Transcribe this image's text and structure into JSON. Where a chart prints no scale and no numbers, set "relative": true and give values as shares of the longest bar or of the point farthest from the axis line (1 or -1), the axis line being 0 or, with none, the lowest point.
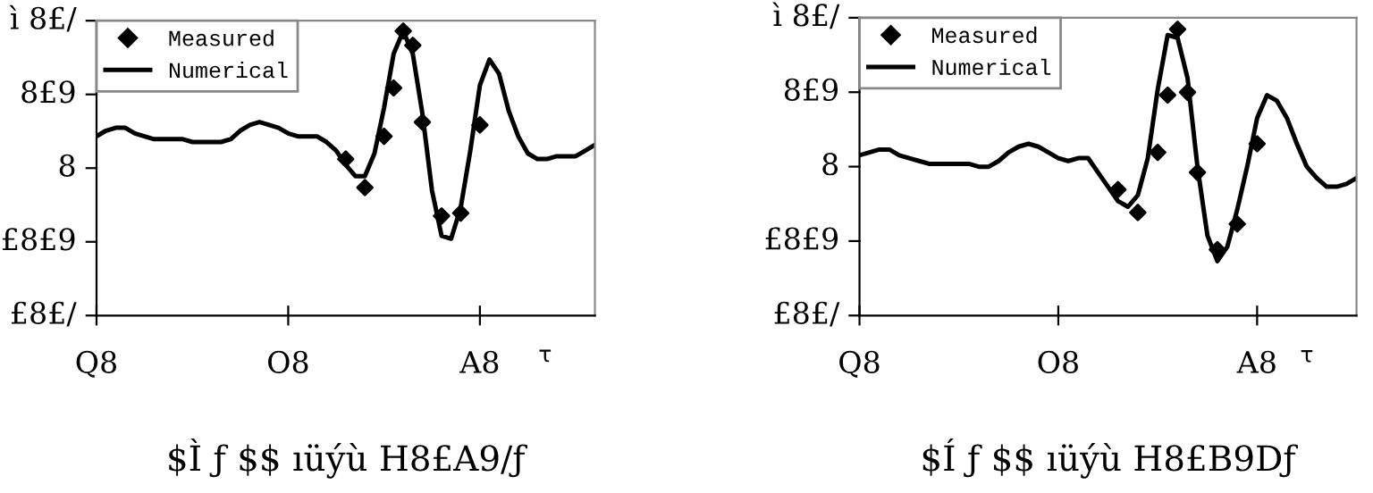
{
  "chart_data": [
    {
      "type": "line",
      "relative": true,
      "legend": "top left",
      "xlabel": "τ",
      "title": "$Ì ƒ $$ ıüýù H8£A9/ƒ",
      "annotations": [
        "ì 8£/",
        "8£9",
        "8",
        "£8£9",
        "£8£/"
      ],
      "categories": [
        "Q8",
        null,
        null,
        null,
        null,
        null,
        null,
        null,
        null,
        null,
        null,
        null,
        null,
        null,
        null,
        null,
        null,
        null,
        null,
        null,
        "O8",
        null,
        null,
        null,
        null,
        null,
        null,
        null,
        null,
        null,
        null,
        null,
        null,
        null,
        null,
        null,
        null,
        null,
        null,
        null,
        "A8",
        null,
        null,
        null,
        null,
        null,
        null,
        null,
        null,
        null,
        null,
        null,
        null
      ],
      "series": [
        {
          "name": "Measured",
          "type": "scatter",
          "marker": "diamond",
          "color": "#000000",
          "values": [
            null,
            null,
            null,
            null,
            null,
            null,
            null,
            null,
            null,
            null,
            null,
            null,
            null,
            null,
            null,
            null,
            null,
            null,
            null,
            null,
            null,
            null,
            null,
            null,
            null,
            null,
            0.55,
            null,
            0.45,
            null,
            0.63,
            0.8,
            1.0,
            0.95,
            0.68,
            null,
            0.35,
            null,
            0.36,
            null,
            0.67,
            null,
            null,
            null,
            null,
            null,
            null,
            null,
            null,
            null,
            null,
            null,
            null
          ]
        },
        {
          "name": "Numerical",
          "type": "line",
          "marker": "none",
          "color": "#000000",
          "values": [
            0.63,
            0.65,
            0.66,
            0.66,
            0.64,
            0.63,
            0.62,
            0.62,
            0.62,
            0.62,
            0.61,
            0.61,
            0.61,
            0.61,
            0.62,
            0.65,
            0.67,
            0.68,
            0.67,
            0.66,
            0.64,
            0.63,
            0.63,
            0.63,
            0.61,
            0.58,
            0.53,
            0.49,
            0.49,
            0.57,
            0.73,
            0.92,
            1,
            0.92,
            0.71,
            0.44,
            0.28,
            0.27,
            0.38,
            0.58,
            0.81,
            0.9,
            0.85,
            0.72,
            0.63,
            0.57,
            0.55,
            0.55,
            0.56,
            0.56,
            0.56,
            0.58,
            0.6
          ]
        }
      ]
    },
    {
      "type": "line",
      "relative": true,
      "legend": "top left",
      "xlabel": "τ",
      "title": "$Í ƒ $$ ıüýù H8£B9Dƒ",
      "annotations": [
        "ì 8£/",
        "8£9",
        "8",
        "£8£9",
        "£8£/"
      ],
      "categories": [
        "Q8",
        null,
        null,
        null,
        null,
        null,
        null,
        null,
        null,
        null,
        null,
        null,
        null,
        null,
        null,
        null,
        null,
        null,
        null,
        null,
        "O8",
        null,
        null,
        null,
        null,
        null,
        null,
        null,
        null,
        null,
        null,
        null,
        null,
        null,
        null,
        null,
        null,
        null,
        null,
        null,
        "A8",
        null,
        null,
        null,
        null,
        null,
        null,
        null,
        null,
        null,
        null
      ],
      "series": [
        {
          "name": "Measured",
          "type": "scatter",
          "marker": "diamond",
          "color": "#000000",
          "values": [
            null,
            null,
            null,
            null,
            null,
            null,
            null,
            null,
            null,
            null,
            null,
            null,
            null,
            null,
            null,
            null,
            null,
            null,
            null,
            null,
            null,
            null,
            null,
            null,
            null,
            null,
            0.44,
            null,
            0.36,
            null,
            0.57,
            0.77,
            1.0,
            0.78,
            0.5,
            null,
            0.23,
            null,
            0.32,
            null,
            0.6,
            null,
            null,
            null,
            null,
            null,
            null,
            null,
            null,
            null,
            null
          ]
        },
        {
          "name": "Numerical",
          "type": "line",
          "marker": "none",
          "color": "#000000",
          "values": [
            0.56,
            0.57,
            0.58,
            0.58,
            0.56,
            0.55,
            0.54,
            0.53,
            0.53,
            0.53,
            0.53,
            0.53,
            0.52,
            0.52,
            0.54,
            0.57,
            0.59,
            0.6,
            0.59,
            0.57,
            0.55,
            0.54,
            0.55,
            0.55,
            0.5,
            0.45,
            0.4,
            0.38,
            0.42,
            0.55,
            0.79,
            0.98,
            0.97,
            0.83,
            0.52,
            0.28,
            0.19,
            0.24,
            0.37,
            0.52,
            0.69,
            0.77,
            0.75,
            0.69,
            0.6,
            0.52,
            0.48,
            0.45,
            0.45,
            0.46,
            0.48
          ]
        }
      ]
    }
  ]
}
